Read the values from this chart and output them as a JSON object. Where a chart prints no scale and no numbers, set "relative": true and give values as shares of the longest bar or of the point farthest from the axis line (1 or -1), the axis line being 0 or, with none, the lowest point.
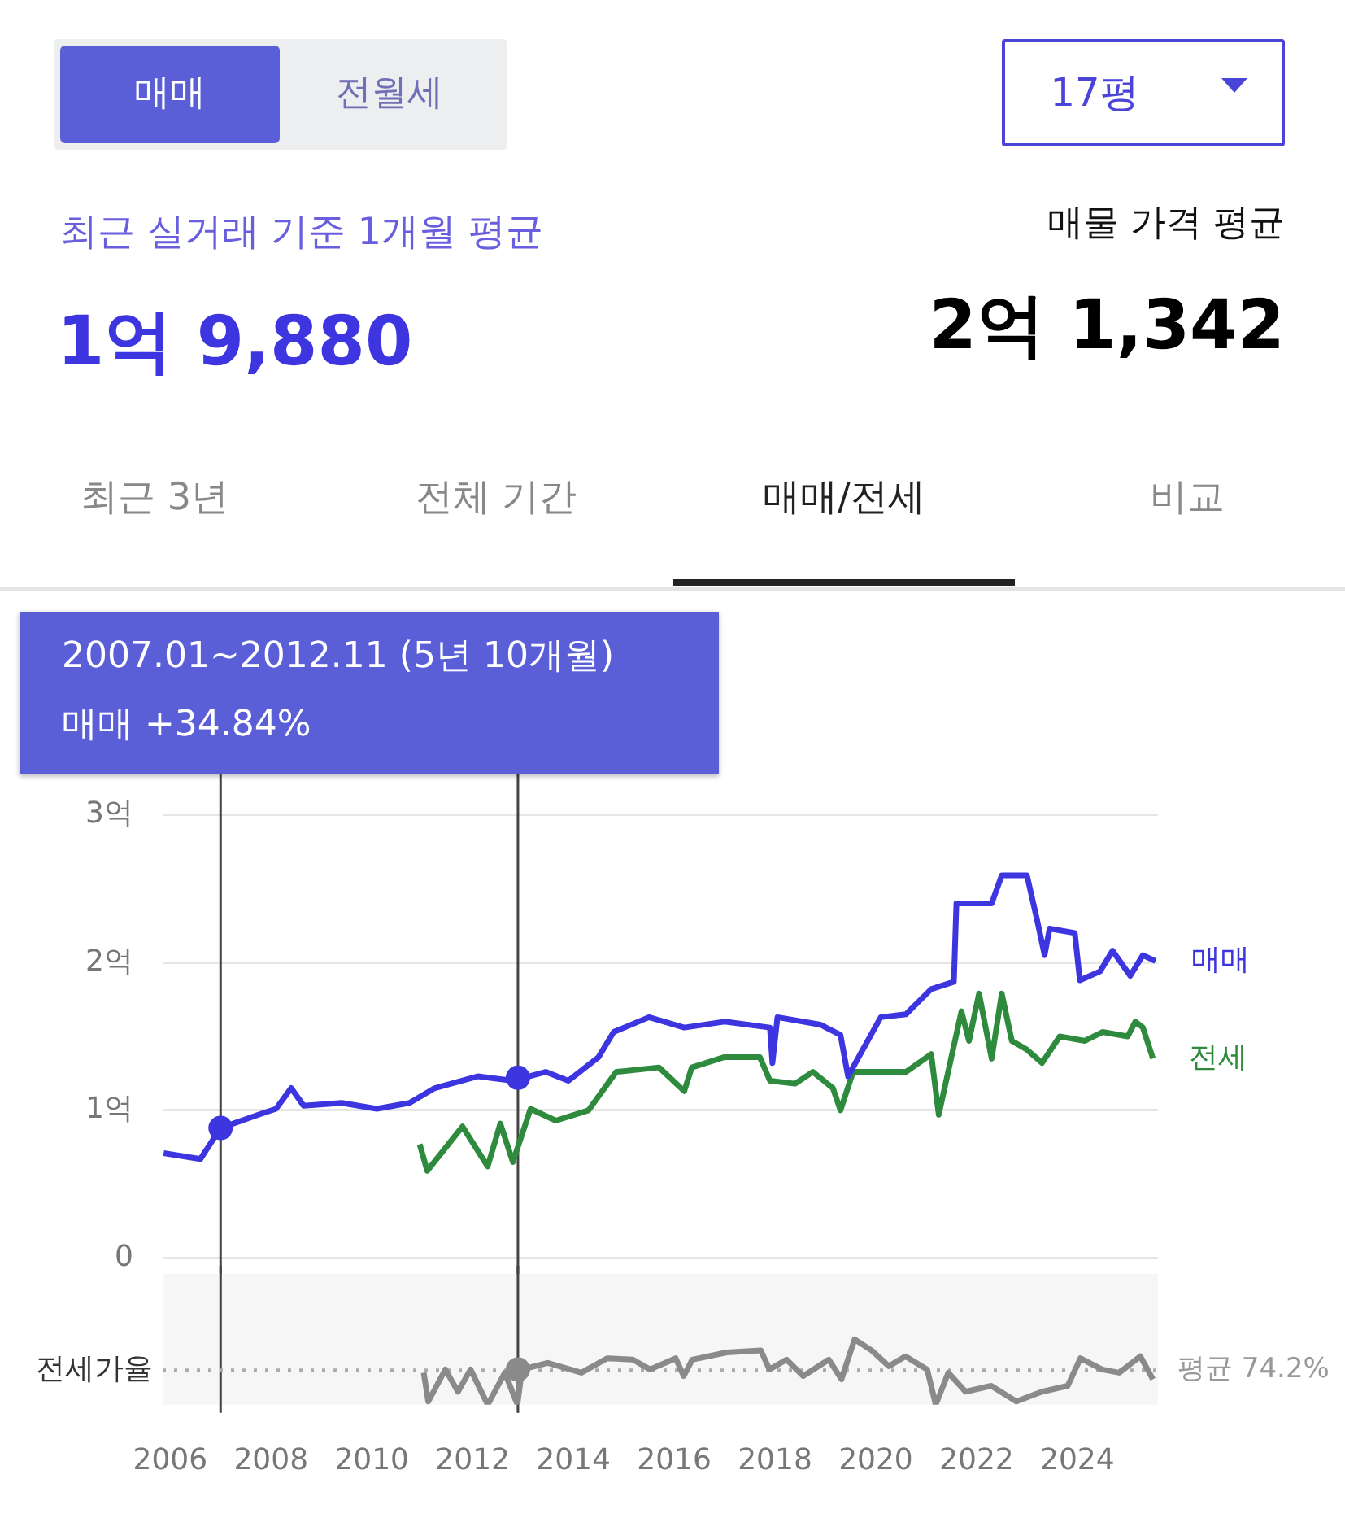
{
  "chart_data": [
    {
      "type": "other",
      "annotations": [
        "매매",
        "전월세",
        "17평",
        "최근 실거래 기준 1개월 평균",
        "1억 9,880",
        "매물 가격 평균",
        "2억 1,342",
        "최근 3년",
        "전체 기간",
        "매매/전세",
        "비교"
      ]
    },
    {
      "type": "line",
      "annotations": [
        "2007.01~2012.11 (5년 10개월)",
        "매매 +34.84%"
      ],
      "xlim": [
        2005.85,
        2025.6
      ],
      "ylim": [
        0,
        3
      ],
      "yticks": [
        0,
        {
          "value": 1,
          "label": "1억"
        },
        {
          "value": 2,
          "label": "2억"
        },
        {
          "value": 3,
          "label": "3억"
        }
      ],
      "grid": "y",
      "legend": false,
      "tick_labels": "y",
      "marker": "none",
      "line_style": "solid",
      "ref_lines": [
        {
          "axis": "x",
          "value": 2007.0,
          "label": null
        },
        {
          "axis": "x",
          "value": 2012.9,
          "label": null
        }
      ],
      "series": [
        {
          "name": "매매",
          "color": "#3d35e0",
          "x": [
            2005.87,
            2006.6,
            2007.0,
            2007.75,
            2008.1,
            2008.4,
            2008.65,
            2009.4,
            2010.1,
            2010.75,
            2011.25,
            2012.1,
            2012.8,
            2013.45,
            2013.9,
            2014.5,
            2014.8,
            2015.5,
            2016.2,
            2017.0,
            2017.9,
            2017.95,
            2018.05,
            2018.9,
            2019.3,
            2019.45,
            2020.1,
            2020.6,
            2021.1,
            2021.55,
            2021.6,
            2022.3,
            2022.5,
            2023.0,
            2023.2,
            2023.35,
            2023.45,
            2023.95,
            2024.05,
            2024.45,
            2024.7,
            2025.05,
            2025.3,
            2025.55
          ],
          "values": [
            0.71,
            0.67,
            0.88,
            0.97,
            1.01,
            1.15,
            1.03,
            1.05,
            1.01,
            1.05,
            1.15,
            1.23,
            1.2,
            1.26,
            1.2,
            1.36,
            1.53,
            1.63,
            1.56,
            1.6,
            1.56,
            1.32,
            1.63,
            1.58,
            1.51,
            1.23,
            1.63,
            1.65,
            1.82,
            1.87,
            2.4,
            2.4,
            2.59,
            2.59,
            2.29,
            2.05,
            2.23,
            2.2,
            1.88,
            1.94,
            2.08,
            1.91,
            2.05,
            2.01
          ]
        },
        {
          "name": "전세",
          "color": "#2e8b3e",
          "x": [
            2010.95,
            2011.1,
            2011.8,
            2012.3,
            2012.55,
            2012.8,
            2013.15,
            2013.65,
            2014.3,
            2014.85,
            2015.7,
            2016.2,
            2016.35,
            2017.0,
            2017.7,
            2017.9,
            2018.4,
            2018.75,
            2019.15,
            2019.3,
            2019.55,
            2020.6,
            2021.1,
            2021.25,
            2021.7,
            2021.85,
            2022.05,
            2022.3,
            2022.5,
            2022.7,
            2023.0,
            2023.3,
            2023.65,
            2024.15,
            2024.5,
            2025.0,
            2025.15,
            2025.3,
            2025.5
          ],
          "values": [
            0.77,
            0.59,
            0.89,
            0.62,
            0.91,
            0.65,
            1.01,
            0.93,
            1.0,
            1.26,
            1.29,
            1.13,
            1.29,
            1.36,
            1.36,
            1.2,
            1.18,
            1.26,
            1.15,
            1.0,
            1.26,
            1.26,
            1.38,
            0.97,
            1.67,
            1.47,
            1.79,
            1.35,
            1.79,
            1.47,
            1.41,
            1.32,
            1.5,
            1.47,
            1.53,
            1.5,
            1.6,
            1.56,
            1.35
          ]
        },
        {
          "type": "scatter",
          "color": "#3d35e0",
          "marker": "circle",
          "x": [
            2007.0,
            2012.9
          ],
          "values": [
            0.88,
            1.22
          ]
        }
      ]
    },
    {
      "type": "line",
      "ylabel": "전세가율",
      "relative": true,
      "xlim": [
        2005.85,
        2025.6
      ],
      "xticks": [
        2006,
        2008,
        2010,
        2012,
        2014,
        2016,
        2018,
        2020,
        2022,
        2024
      ],
      "grid": false,
      "legend": false,
      "tick_labels": "x",
      "marker": "none",
      "line_style": "solid",
      "ref_lines": [
        {
          "axis": "x",
          "value": 2007.0,
          "label": null
        },
        {
          "axis": "x",
          "value": 2012.9,
          "label": null
        },
        {
          "axis": "y",
          "value": 0.53,
          "label": "평균 74.2%",
          "line_style": "dotted",
          "color": "#aaaaaa"
        }
      ],
      "series": [
        {
          "color": "#8a8a8a",
          "x": [
            2011.03,
            2011.12,
            2011.46,
            2011.71,
            2011.96,
            2012.3,
            2012.64,
            2012.89,
            2012.98,
            2013.49,
            2014.16,
            2014.67,
            2015.18,
            2015.52,
            2016.03,
            2016.19,
            2016.36,
            2017.04,
            2017.72,
            2017.89,
            2018.23,
            2018.56,
            2019.07,
            2019.32,
            2019.58,
            2019.92,
            2020.26,
            2020.59,
            2021.02,
            2021.19,
            2021.44,
            2021.78,
            2022.29,
            2022.79,
            2023.3,
            2023.81,
            2024.06,
            2024.49,
            2024.83,
            2025.25,
            2025.5
          ],
          "values": [
            0.49,
            0.05,
            0.54,
            0.2,
            0.54,
            0,
            0.49,
            0,
            0.54,
            0.64,
            0.49,
            0.71,
            0.69,
            0.54,
            0.71,
            0.44,
            0.69,
            0.8,
            0.83,
            0.54,
            0.69,
            0.44,
            0.69,
            0.39,
            1,
            0.83,
            0.59,
            0.74,
            0.54,
            0,
            0.49,
            0.2,
            0.29,
            0.05,
            0.2,
            0.29,
            0.71,
            0.54,
            0.49,
            0.74,
            0.39
          ]
        },
        {
          "type": "scatter",
          "color": "#8a8a8a",
          "marker": "circle",
          "x": [
            2012.9
          ],
          "values": [
            0.54
          ]
        }
      ]
    }
  ]
}
